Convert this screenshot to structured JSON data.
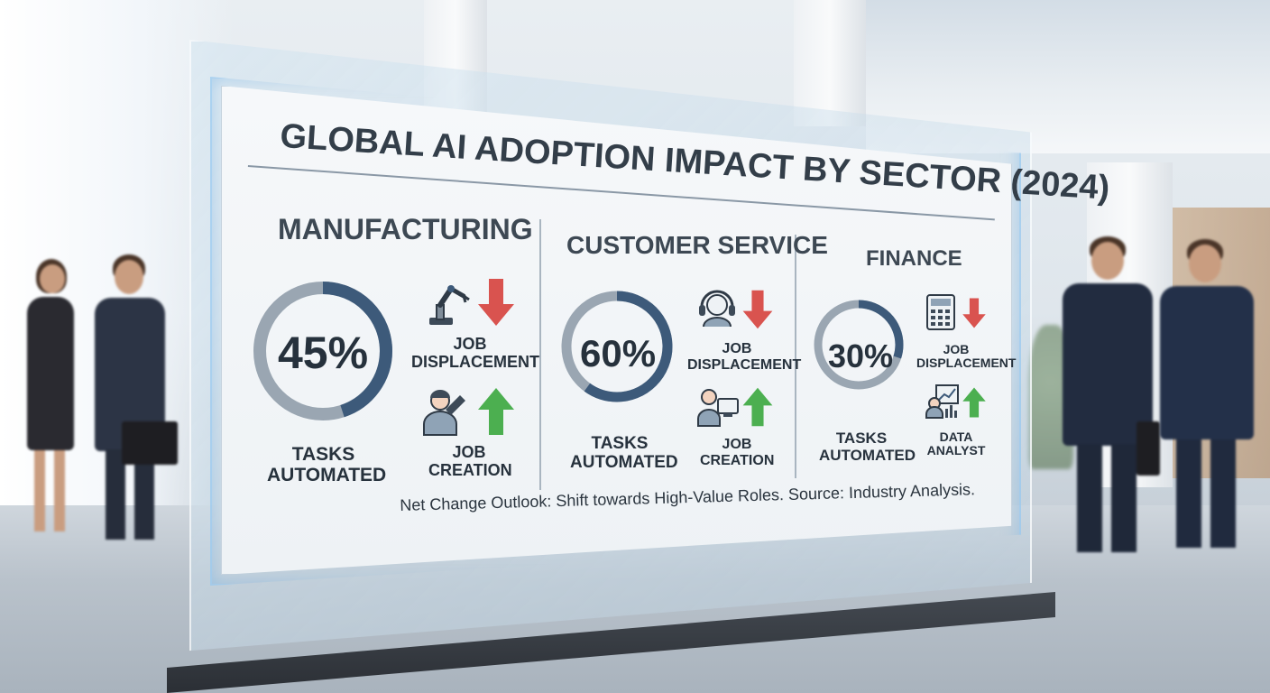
{
  "title": "GLOBAL AI ADOPTION IMPACT BY SECTOR (2024)",
  "colors": {
    "ring_fill": "#3d5a7a",
    "ring_track": "#9aa6b2",
    "arrow_down": "#d9534f",
    "arrow_up": "#4caf50",
    "text_dark": "#2f3a46"
  },
  "sectors": [
    {
      "name": "MANUFACTURING",
      "percent_label": "45%",
      "percent_value": 45,
      "metric_label": "TASKS AUTOMATED",
      "impacts": [
        {
          "icon": "robot-arm-icon",
          "label": "JOB DISPLACEMENT",
          "direction": "down"
        },
        {
          "icon": "worker-wrench-icon",
          "label": "JOB CREATION",
          "direction": "up"
        }
      ]
    },
    {
      "name": "CUSTOMER SERVICE",
      "percent_label": "60%",
      "percent_value": 60,
      "metric_label": "TASKS AUTOMATED",
      "impacts": [
        {
          "icon": "headset-icon",
          "label": "JOB DISPLACEMENT",
          "direction": "down"
        },
        {
          "icon": "computer-user-icon",
          "label": "JOB CREATION",
          "direction": "up"
        }
      ]
    },
    {
      "name": "FINANCE",
      "percent_label": "30%",
      "percent_value": 30,
      "metric_label": "TASKS AUTOMATED",
      "impacts": [
        {
          "icon": "calculator-icon",
          "label": "JOB DISPLACEMENT",
          "direction": "down"
        },
        {
          "icon": "analyst-chart-icon",
          "label": "DATA ANALYST",
          "direction": "up"
        }
      ]
    }
  ],
  "footer": "Net Change Outlook: Shift towards High-Value Roles. Source: Industry Analysis."
}
